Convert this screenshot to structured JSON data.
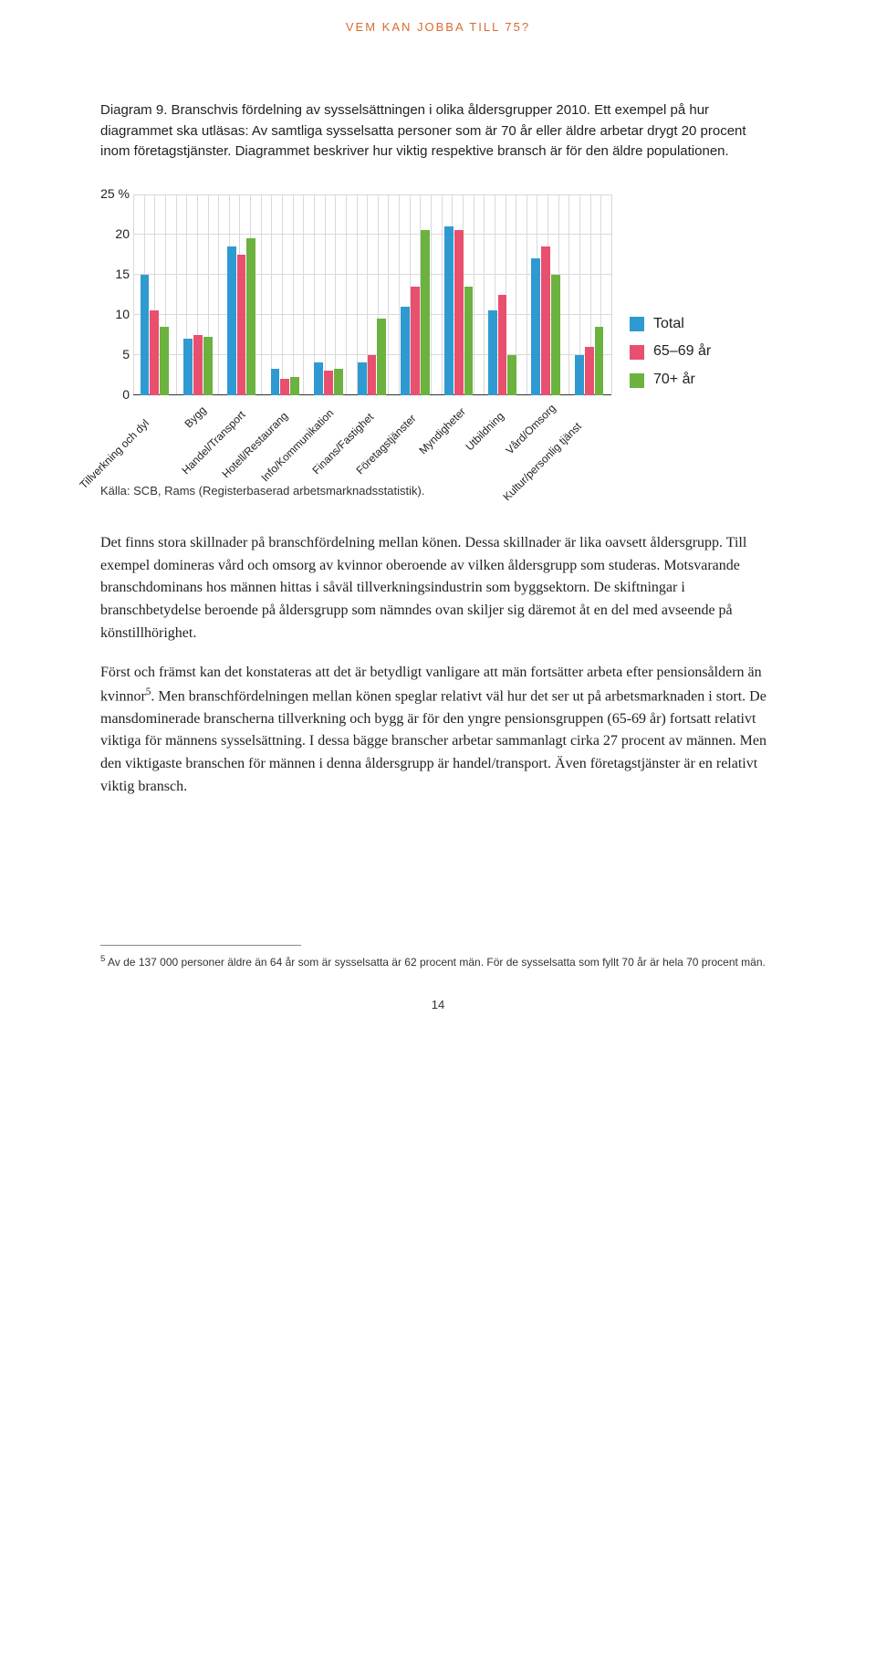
{
  "running_head": "VEM KAN JOBBA TILL 75?",
  "figure_caption": "Diagram 9. Branschvis fördelning av sysselsättningen i olika åldersgrupper 2010.",
  "figure_desc": "Ett exempel på hur diagrammet ska utläsas: Av samtliga sysselsatta personer som är 70 år eller äldre arbetar drygt 20 procent inom företagstjänster. Diagrammet beskriver hur viktig respektive bransch är för den äldre populationen.",
  "chart": {
    "type": "bar",
    "background_color": "#ffffff",
    "grid_color": "#d9d9d9",
    "axis_color": "#333333",
    "ylim": [
      0,
      25
    ],
    "yticks": [
      {
        "v": 25,
        "label": "25 %"
      },
      {
        "v": 20,
        "label": "20"
      },
      {
        "v": 15,
        "label": "15"
      },
      {
        "v": 10,
        "label": "10"
      },
      {
        "v": 5,
        "label": "5"
      },
      {
        "v": 0,
        "label": "0"
      }
    ],
    "tick_fontsize": 14,
    "label_fontsize": 12,
    "bar_group_width": 0.68,
    "vgrid_per_category": 4,
    "series": [
      {
        "key": "total",
        "label": "Total",
        "color": "#2f9ad1"
      },
      {
        "key": "age6569",
        "label": "65–69 år",
        "color": "#e94f6e"
      },
      {
        "key": "age70",
        "label": "70+ år",
        "color": "#6bb23f"
      }
    ],
    "categories": [
      {
        "label": "Tillverkning och dyl",
        "values": {
          "total": 15.0,
          "age6569": 10.5,
          "age70": 8.5
        }
      },
      {
        "label": "Bygg",
        "values": {
          "total": 7.0,
          "age6569": 7.5,
          "age70": 7.2
        }
      },
      {
        "label": "Handel/Transport",
        "values": {
          "total": 18.5,
          "age6569": 17.5,
          "age70": 19.5
        }
      },
      {
        "label": "Hotell/Restaurang",
        "values": {
          "total": 3.2,
          "age6569": 2.0,
          "age70": 2.2
        }
      },
      {
        "label": "Info/Kommunikation",
        "values": {
          "total": 4.0,
          "age6569": 3.0,
          "age70": 3.2
        }
      },
      {
        "label": "Finans/Fastighet",
        "values": {
          "total": 4.0,
          "age6569": 5.0,
          "age70": 9.5
        }
      },
      {
        "label": "Företagstjänster",
        "values": {
          "total": 11.0,
          "age6569": 13.5,
          "age70": 20.5
        }
      },
      {
        "label": "Myndigheter",
        "values": {
          "total": 21.0,
          "age6569": 20.5,
          "age70": 13.5
        }
      },
      {
        "label": "Utbildning",
        "values": {
          "total": 10.5,
          "age6569": 12.5,
          "age70": 5.0
        }
      },
      {
        "label": "Vård/Omsorg",
        "values": {
          "total": 17.0,
          "age6569": 18.5,
          "age70": 15.0
        }
      },
      {
        "label": "Kultur/personlig tjänst",
        "values": {
          "total": 5.0,
          "age6569": 6.0,
          "age70": 8.5
        }
      }
    ]
  },
  "source": "Källa: SCB, Rams (Registerbaserad arbetsmarknadsstatistik).",
  "para1": "Det finns stora skillnader på branschfördelning mellan könen. Dessa skillnader är lika oavsett åldersgrupp. Till exempel domineras vård och omsorg av kvinnor oberoende av vilken åldersgrupp som studeras. Motsvarande branschdominans hos männen hittas i såväl tillverkningsindustrin som byggsektorn. De skiftningar i branschbetydelse beroende på åldersgrupp som nämndes ovan skiljer sig däremot åt en del med avseende på könstillhörighet.",
  "para2_a": "Först och främst kan det konstateras att det är betydligt vanligare att män fortsätter arbeta efter pensionsåldern än kvinnor",
  "para2_sup": "5",
  "para2_b": ". Men branschfördelningen mellan könen speglar relativt väl hur det ser ut på arbetsmarknaden i stort. De mansdominerade branscherna tillverkning och bygg är för den yngre pensionsgruppen (65-69 år) fortsatt relativt viktiga för männens sysselsättning. I dessa bägge branscher arbetar sammanlagt cirka 27 procent av männen. Men den viktigaste branschen för männen i denna åldersgrupp är handel/transport. Även företagstjänster är en relativt viktig bransch.",
  "footnote_sup": "5",
  "footnote": "Av de 137 000 personer äldre än 64 år som är sysselsatta är 62 procent män. För de sysselsatta som fyllt 70 år är hela 70 procent män.",
  "page_number": "14"
}
